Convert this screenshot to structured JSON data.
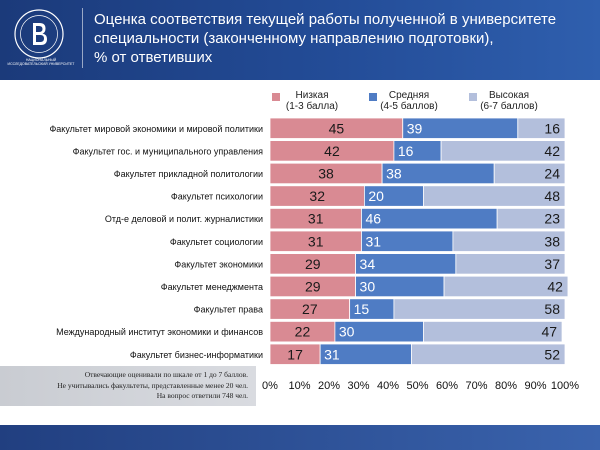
{
  "header": {
    "title_lines": [
      "Оценка соответствия текущей работы полученной в университете",
      "специальности (законченному направлению подготовки),",
      "% от ответивших"
    ],
    "logo_caption": "НАЦИОНАЛЬНЫЙ ИССЛЕДОВАТЕЛЬСКИЙ УНИВЕРСИТЕТ"
  },
  "colors": {
    "header_bg": "#234c97",
    "low": "#d98a93",
    "mid": "#4f7cc4",
    "high": "#b3bfdc"
  },
  "footnote": {
    "lines": [
      "Отвечающие оценивали по шкале от 1 до 7 баллов.",
      "Не учитывались факультеты, представленные менее 20 чел.",
      "На вопрос ответили 748 чел."
    ]
  },
  "chart_data": {
    "type": "bar",
    "orientation": "horizontal",
    "stacked": true,
    "categories": [
      "Факультет мировой экономики и мировой политики",
      "Факультет гос. и муниципального управления",
      "Факультет прикладной политологии",
      "Факультет психологии",
      "Отд-е деловой и полит. журналистики",
      "Факультет социологии",
      "Факультет экономики",
      "Факультет менеджмента",
      "Факультет права",
      "Международный институт экономики и финансов",
      "Факультет бизнес-информатики"
    ],
    "series": [
      {
        "name": "Низкая\n(1-3 балла)",
        "color": "#d98a93",
        "values": [
          45,
          42,
          38,
          32,
          31,
          31,
          29,
          29,
          27,
          22,
          17
        ]
      },
      {
        "name": "Средняя\n(4-5 баллов)",
        "color": "#4f7cc4",
        "values": [
          39,
          16,
          38,
          20,
          46,
          31,
          34,
          30,
          15,
          30,
          31
        ]
      },
      {
        "name": "Высокая\n(6-7 баллов)",
        "color": "#b3bfdc",
        "values": [
          16,
          42,
          24,
          48,
          23,
          38,
          37,
          42,
          58,
          47,
          52
        ]
      }
    ],
    "xticks": [
      "0%",
      "10%",
      "20%",
      "30%",
      "40%",
      "50%",
      "60%",
      "70%",
      "80%",
      "90%",
      "100%"
    ],
    "xlim": [
      0,
      100
    ],
    "legend_position": "top",
    "grid": false
  }
}
